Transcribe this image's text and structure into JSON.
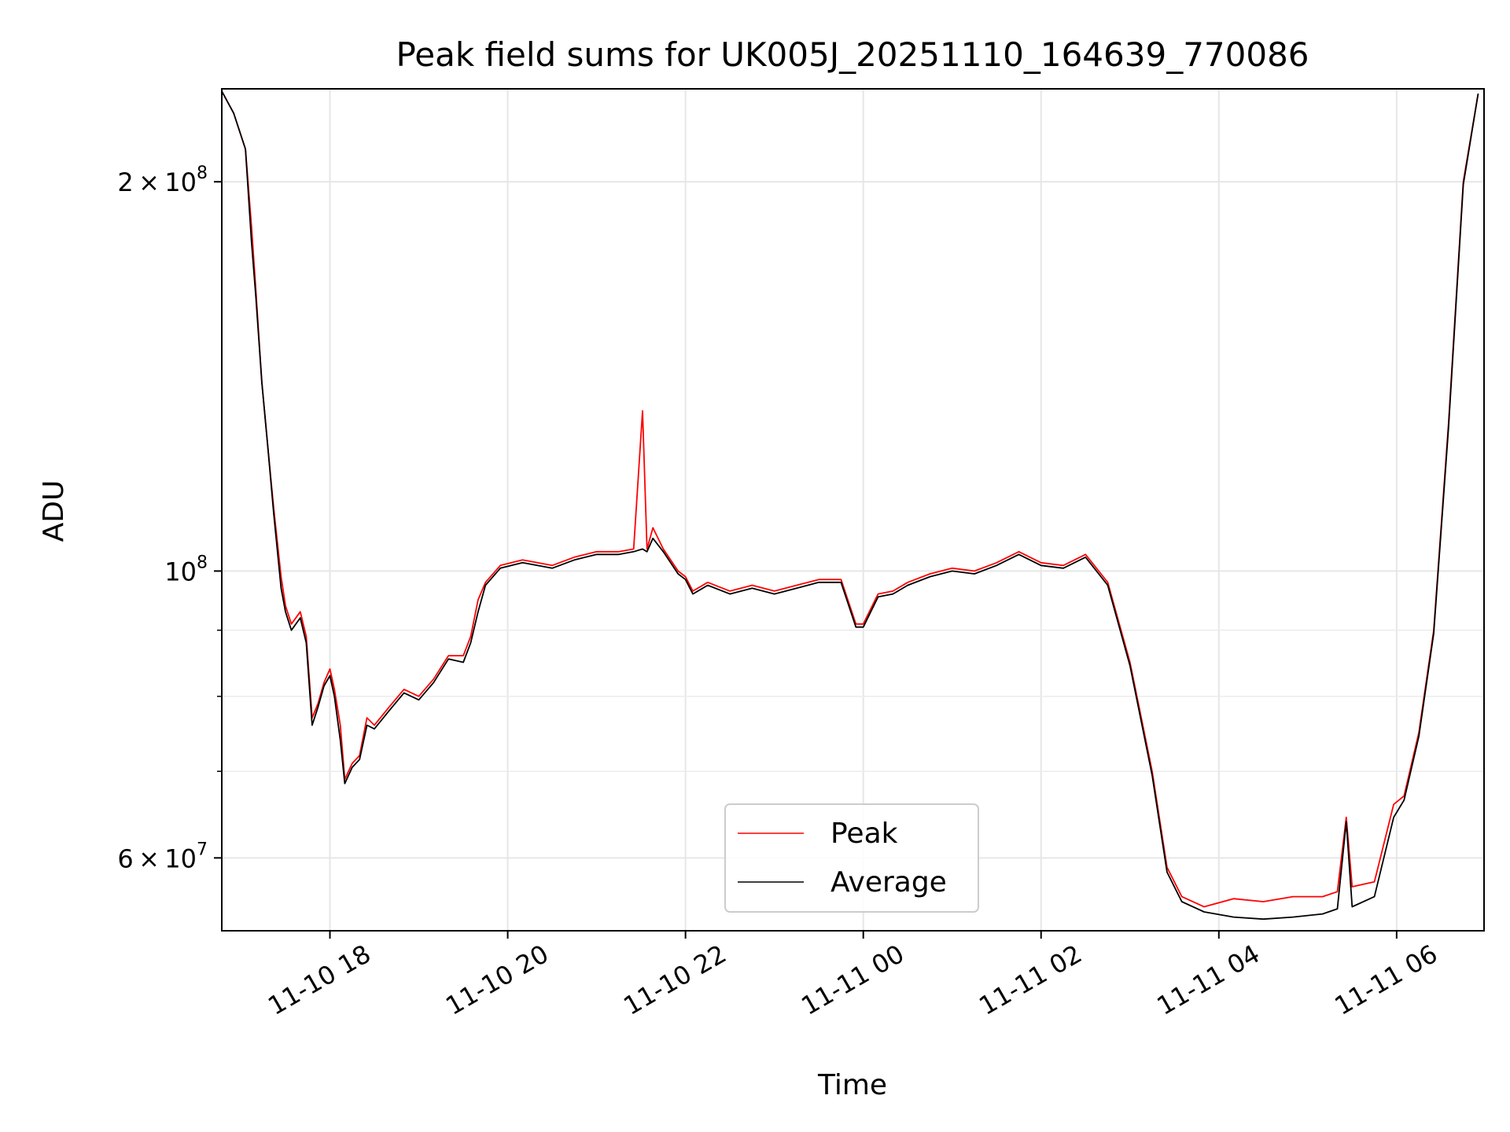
{
  "chart_data": {
    "type": "line",
    "title": "Peak field sums for UK005J_20251110_164639_770086",
    "xlabel": "Time",
    "ylabel": "ADU",
    "yscale": "log",
    "xlim": [
      "2025-11-10 16:47",
      "2025-11-11 06:59"
    ],
    "ylim": [
      52700000,
      236000000
    ],
    "grid": true,
    "legend_position": "lower-center",
    "x_ticks": [
      {
        "value": "2025-11-10 18:00",
        "label": "11-10 18"
      },
      {
        "value": "2025-11-10 20:00",
        "label": "11-10 20"
      },
      {
        "value": "2025-11-10 22:00",
        "label": "11-10 22"
      },
      {
        "value": "2025-11-11 00:00",
        "label": "11-11 00"
      },
      {
        "value": "2025-11-11 02:00",
        "label": "11-11 02"
      },
      {
        "value": "2025-11-11 04:00",
        "label": "11-11 04"
      },
      {
        "value": "2025-11-11 06:00",
        "label": "11-11 06"
      }
    ],
    "y_ticks": [
      {
        "value": 200000000,
        "mantissa": "2",
        "exponent": "8"
      },
      {
        "value": 100000000,
        "mantissa": "",
        "exponent": "8"
      },
      {
        "value": 60000000,
        "mantissa": "6",
        "exponent": "7"
      }
    ],
    "y_minor_ticks": [
      70000000,
      80000000,
      90000000
    ],
    "series": [
      {
        "name": "Peak",
        "color": "#ff0000",
        "points": [
          [
            "2025-11-10 16:47",
            235000000
          ],
          [
            "2025-11-10 16:55",
            226000000
          ],
          [
            "2025-11-10 17:03",
            212000000
          ],
          [
            "2025-11-10 17:07",
            185000000
          ],
          [
            "2025-11-10 17:10",
            165000000
          ],
          [
            "2025-11-10 17:14",
            140000000
          ],
          [
            "2025-11-10 17:18",
            125000000
          ],
          [
            "2025-11-10 17:22",
            112000000
          ],
          [
            "2025-11-10 17:27",
            99000000
          ],
          [
            "2025-11-10 17:30",
            94000000
          ],
          [
            "2025-11-10 17:34",
            91000000
          ],
          [
            "2025-11-10 17:40",
            93000000
          ],
          [
            "2025-11-10 17:44",
            89000000
          ],
          [
            "2025-11-10 17:48",
            77000000
          ],
          [
            "2025-11-10 17:52",
            79000000
          ],
          [
            "2025-11-10 17:56",
            82000000
          ],
          [
            "2025-11-10 18:00",
            84000000
          ],
          [
            "2025-11-10 18:03",
            81000000
          ],
          [
            "2025-11-10 18:07",
            76000000
          ],
          [
            "2025-11-10 18:10",
            69000000
          ],
          [
            "2025-11-10 18:15",
            71000000
          ],
          [
            "2025-11-10 18:20",
            72000000
          ],
          [
            "2025-11-10 18:25",
            77000000
          ],
          [
            "2025-11-10 18:30",
            76000000
          ],
          [
            "2025-11-10 18:40",
            78500000
          ],
          [
            "2025-11-10 18:50",
            81000000
          ],
          [
            "2025-11-10 19:00",
            80000000
          ],
          [
            "2025-11-10 19:10",
            82500000
          ],
          [
            "2025-11-10 19:20",
            86000000
          ],
          [
            "2025-11-10 19:30",
            86000000
          ],
          [
            "2025-11-10 19:35",
            89000000
          ],
          [
            "2025-11-10 19:40",
            95000000
          ],
          [
            "2025-11-10 19:45",
            98000000
          ],
          [
            "2025-11-10 19:55",
            101000000
          ],
          [
            "2025-11-10 20:10",
            102000000
          ],
          [
            "2025-11-10 20:20",
            101500000
          ],
          [
            "2025-11-10 20:30",
            101000000
          ],
          [
            "2025-11-10 20:45",
            102500000
          ],
          [
            "2025-11-10 21:00",
            103500000
          ],
          [
            "2025-11-10 21:15",
            103500000
          ],
          [
            "2025-11-10 21:25",
            104000000
          ],
          [
            "2025-11-10 21:31",
            133000000
          ],
          [
            "2025-11-10 21:34",
            104000000
          ],
          [
            "2025-11-10 21:38",
            108000000
          ],
          [
            "2025-11-10 21:45",
            104000000
          ],
          [
            "2025-11-10 21:55",
            100000000
          ],
          [
            "2025-11-10 22:00",
            99000000
          ],
          [
            "2025-11-10 22:05",
            96500000
          ],
          [
            "2025-11-10 22:15",
            98000000
          ],
          [
            "2025-11-10 22:30",
            96500000
          ],
          [
            "2025-11-10 22:45",
            97500000
          ],
          [
            "2025-11-10 23:00",
            96500000
          ],
          [
            "2025-11-10 23:15",
            97500000
          ],
          [
            "2025-11-10 23:30",
            98500000
          ],
          [
            "2025-11-10 23:45",
            98500000
          ],
          [
            "2025-11-10 23:55",
            91000000
          ],
          [
            "2025-11-11 00:00",
            91000000
          ],
          [
            "2025-11-11 00:10",
            96000000
          ],
          [
            "2025-11-11 00:20",
            96500000
          ],
          [
            "2025-11-11 00:30",
            98000000
          ],
          [
            "2025-11-11 00:45",
            99500000
          ],
          [
            "2025-11-11 01:00",
            100500000
          ],
          [
            "2025-11-11 01:15",
            100000000
          ],
          [
            "2025-11-11 01:30",
            101500000
          ],
          [
            "2025-11-11 01:45",
            103500000
          ],
          [
            "2025-11-11 02:00",
            101500000
          ],
          [
            "2025-11-11 02:15",
            101000000
          ],
          [
            "2025-11-11 02:30",
            103000000
          ],
          [
            "2025-11-11 02:45",
            98000000
          ],
          [
            "2025-11-11 03:00",
            85000000
          ],
          [
            "2025-11-11 03:15",
            70000000
          ],
          [
            "2025-11-11 03:25",
            59000000
          ],
          [
            "2025-11-11 03:35",
            56000000
          ],
          [
            "2025-11-11 03:50",
            55000000
          ],
          [
            "2025-11-11 04:10",
            55800000
          ],
          [
            "2025-11-11 04:30",
            55500000
          ],
          [
            "2025-11-11 04:50",
            56000000
          ],
          [
            "2025-11-11 05:10",
            56000000
          ],
          [
            "2025-11-11 05:20",
            56500000
          ],
          [
            "2025-11-11 05:26",
            64500000
          ],
          [
            "2025-11-11 05:30",
            57000000
          ],
          [
            "2025-11-11 05:45",
            57500000
          ],
          [
            "2025-11-11 05:58",
            66000000
          ],
          [
            "2025-11-11 06:05",
            67000000
          ],
          [
            "2025-11-11 06:15",
            75000000
          ],
          [
            "2025-11-11 06:25",
            90000000
          ],
          [
            "2025-11-11 06:35",
            130000000
          ],
          [
            "2025-11-11 06:45",
            200000000
          ],
          [
            "2025-11-11 06:55",
            234000000
          ]
        ]
      },
      {
        "name": "Average",
        "color": "#000000",
        "points": [
          [
            "2025-11-10 16:47",
            235000000
          ],
          [
            "2025-11-10 16:55",
            226000000
          ],
          [
            "2025-11-10 17:03",
            212000000
          ],
          [
            "2025-11-10 17:07",
            180000000
          ],
          [
            "2025-11-10 17:10",
            163000000
          ],
          [
            "2025-11-10 17:14",
            140000000
          ],
          [
            "2025-11-10 17:18",
            125000000
          ],
          [
            "2025-11-10 17:22",
            111000000
          ],
          [
            "2025-11-10 17:27",
            97000000
          ],
          [
            "2025-11-10 17:30",
            93000000
          ],
          [
            "2025-11-10 17:34",
            90000000
          ],
          [
            "2025-11-10 17:40",
            92000000
          ],
          [
            "2025-11-10 17:44",
            88000000
          ],
          [
            "2025-11-10 17:48",
            76000000
          ],
          [
            "2025-11-10 17:52",
            78500000
          ],
          [
            "2025-11-10 17:56",
            81500000
          ],
          [
            "2025-11-10 18:00",
            83000000
          ],
          [
            "2025-11-10 18:03",
            80000000
          ],
          [
            "2025-11-10 18:07",
            74000000
          ],
          [
            "2025-11-10 18:10",
            68500000
          ],
          [
            "2025-11-10 18:15",
            70500000
          ],
          [
            "2025-11-10 18:20",
            71500000
          ],
          [
            "2025-11-10 18:25",
            76000000
          ],
          [
            "2025-11-10 18:30",
            75500000
          ],
          [
            "2025-11-10 18:40",
            78000000
          ],
          [
            "2025-11-10 18:50",
            80500000
          ],
          [
            "2025-11-10 19:00",
            79500000
          ],
          [
            "2025-11-10 19:10",
            82000000
          ],
          [
            "2025-11-10 19:20",
            85500000
          ],
          [
            "2025-11-10 19:30",
            85000000
          ],
          [
            "2025-11-10 19:35",
            88000000
          ],
          [
            "2025-11-10 19:40",
            93000000
          ],
          [
            "2025-11-10 19:45",
            97500000
          ],
          [
            "2025-11-10 19:55",
            100500000
          ],
          [
            "2025-11-10 20:10",
            101500000
          ],
          [
            "2025-11-10 20:20",
            101000000
          ],
          [
            "2025-11-10 20:30",
            100500000
          ],
          [
            "2025-11-10 20:45",
            102000000
          ],
          [
            "2025-11-10 21:00",
            103000000
          ],
          [
            "2025-11-10 21:15",
            103000000
          ],
          [
            "2025-11-10 21:25",
            103500000
          ],
          [
            "2025-11-10 21:31",
            104000000
          ],
          [
            "2025-11-10 21:34",
            103500000
          ],
          [
            "2025-11-10 21:38",
            106000000
          ],
          [
            "2025-11-10 21:45",
            103500000
          ],
          [
            "2025-11-10 21:55",
            99500000
          ],
          [
            "2025-11-10 22:00",
            98500000
          ],
          [
            "2025-11-10 22:05",
            96000000
          ],
          [
            "2025-11-10 22:15",
            97500000
          ],
          [
            "2025-11-10 22:30",
            96000000
          ],
          [
            "2025-11-10 22:45",
            97000000
          ],
          [
            "2025-11-10 23:00",
            96000000
          ],
          [
            "2025-11-10 23:15",
            97000000
          ],
          [
            "2025-11-10 23:30",
            98000000
          ],
          [
            "2025-11-10 23:45",
            98000000
          ],
          [
            "2025-11-10 23:55",
            90500000
          ],
          [
            "2025-11-11 00:00",
            90500000
          ],
          [
            "2025-11-11 00:10",
            95500000
          ],
          [
            "2025-11-11 00:20",
            96000000
          ],
          [
            "2025-11-11 00:30",
            97500000
          ],
          [
            "2025-11-11 00:45",
            99000000
          ],
          [
            "2025-11-11 01:00",
            100000000
          ],
          [
            "2025-11-11 01:15",
            99500000
          ],
          [
            "2025-11-11 01:30",
            101000000
          ],
          [
            "2025-11-11 01:45",
            103000000
          ],
          [
            "2025-11-11 02:00",
            101000000
          ],
          [
            "2025-11-11 02:15",
            100500000
          ],
          [
            "2025-11-11 02:30",
            102500000
          ],
          [
            "2025-11-11 02:45",
            97500000
          ],
          [
            "2025-11-11 03:00",
            84500000
          ],
          [
            "2025-11-11 03:15",
            69500000
          ],
          [
            "2025-11-11 03:25",
            58500000
          ],
          [
            "2025-11-11 03:35",
            55500000
          ],
          [
            "2025-11-11 03:50",
            54500000
          ],
          [
            "2025-11-11 04:10",
            54000000
          ],
          [
            "2025-11-11 04:30",
            53800000
          ],
          [
            "2025-11-11 04:50",
            54000000
          ],
          [
            "2025-11-11 05:10",
            54300000
          ],
          [
            "2025-11-11 05:20",
            54800000
          ],
          [
            "2025-11-11 05:26",
            64000000
          ],
          [
            "2025-11-11 05:30",
            55000000
          ],
          [
            "2025-11-11 05:45",
            56000000
          ],
          [
            "2025-11-11 05:58",
            64500000
          ],
          [
            "2025-11-11 06:05",
            66500000
          ],
          [
            "2025-11-11 06:15",
            74500000
          ],
          [
            "2025-11-11 06:25",
            89500000
          ],
          [
            "2025-11-11 06:35",
            129000000
          ],
          [
            "2025-11-11 06:45",
            199000000
          ],
          [
            "2025-11-11 06:55",
            234000000
          ]
        ]
      }
    ]
  }
}
